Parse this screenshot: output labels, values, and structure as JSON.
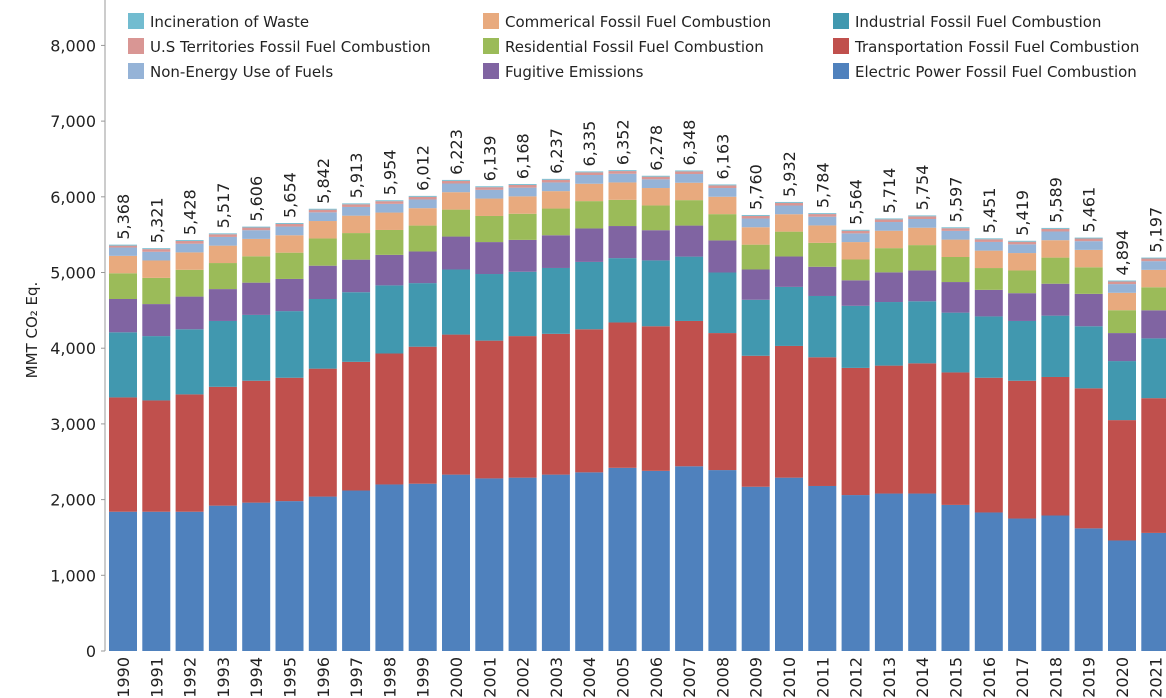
{
  "chart_data": {
    "type": "stacked-bar",
    "y_label": "MMT CO₂ Eq.",
    "categories": [
      "1990",
      "1991",
      "1992",
      "1993",
      "1994",
      "1995",
      "1996",
      "1997",
      "1998",
      "1999",
      "2000",
      "2001",
      "2002",
      "2003",
      "2004",
      "2005",
      "2006",
      "2007",
      "2008",
      "2009",
      "2010",
      "2011",
      "2012",
      "2013",
      "2014",
      "2015",
      "2016",
      "2017",
      "2018",
      "2019",
      "2020",
      "2021"
    ],
    "ylim": [
      0,
      8600
    ],
    "yticks": [
      0,
      {
        "value": 1000,
        "label": "1,000"
      },
      {
        "value": 2000,
        "label": "2,000"
      },
      {
        "value": 3000,
        "label": "3,000"
      },
      {
        "value": 4000,
        "label": "4,000"
      },
      {
        "value": 5000,
        "label": "5,000"
      },
      {
        "value": 6000,
        "label": "6,000"
      },
      {
        "value": 7000,
        "label": "7,000"
      },
      {
        "value": 8000,
        "label": "8,000"
      }
    ],
    "series": [
      {
        "name": "Electric Power Fossil Fuel Combustion",
        "color": "#4f81bd",
        "values": [
          1840,
          1840,
          1840,
          1920,
          1960,
          1980,
          2040,
          2120,
          2200,
          2210,
          2330,
          2280,
          2290,
          2330,
          2360,
          2420,
          2380,
          2440,
          2390,
          2170,
          2290,
          2180,
          2060,
          2080,
          2080,
          1930,
          1830,
          1750,
          1790,
          1620,
          1460,
          1560
        ]
      },
      {
        "name": "Transportation Fossil Fuel Combustion",
        "color": "#c0504d",
        "values": [
          1510,
          1470,
          1550,
          1570,
          1610,
          1630,
          1690,
          1700,
          1730,
          1810,
          1850,
          1820,
          1870,
          1860,
          1890,
          1920,
          1910,
          1920,
          1810,
          1730,
          1740,
          1700,
          1680,
          1690,
          1720,
          1750,
          1780,
          1820,
          1830,
          1850,
          1590,
          1780
        ]
      },
      {
        "name": "Industrial Fossil Fuel Combustion",
        "color": "#4198af",
        "values": [
          860,
          850,
          860,
          870,
          870,
          880,
          920,
          920,
          900,
          840,
          860,
          880,
          850,
          870,
          890,
          850,
          870,
          850,
          800,
          740,
          780,
          810,
          820,
          840,
          820,
          790,
          810,
          790,
          810,
          820,
          780,
          790
        ]
      },
      {
        "name": "Fugitive Emissions",
        "color": "#8064a2",
        "values": [
          440,
          423,
          432,
          421,
          426,
          425,
          440,
          430,
          403,
          418,
          435,
          422,
          421,
          432,
          442,
          424,
          399,
          410,
          424,
          400,
          402,
          386,
          337,
          392,
          408,
          404,
          351,
          367,
          422,
          428,
          370,
          371
        ]
      },
      {
        "name": "Residential Fossil Fuel Combustion",
        "color": "#9bbb59",
        "values": [
          340,
          346,
          354,
          344,
          348,
          347,
          360,
          351,
          329,
          342,
          356,
          345,
          345,
          353,
          361,
          346,
          327,
          336,
          347,
          328,
          328,
          316,
          275,
          320,
          334,
          331,
          288,
          300,
          345,
          351,
          302,
          304
        ]
      },
      {
        "name": "Commerical Fossil Fuel Combustion",
        "color": "#e8aa7e",
        "values": [
          230,
          230,
          230,
          230,
          230,
          230,
          230,
          230,
          230,
          230,
          230,
          230,
          230,
          230,
          230,
          230,
          230,
          230,
          230,
          230,
          230,
          230,
          230,
          230,
          230,
          230,
          230,
          230,
          230,
          230,
          230,
          230
        ]
      },
      {
        "name": "Non-Energy Use of Fuels",
        "color": "#95b3d7",
        "values": [
          110,
          115,
          115,
          115,
          115,
          115,
          115,
          115,
          115,
          115,
          115,
          115,
          115,
          115,
          115,
          115,
          115,
          115,
          115,
          115,
          115,
          115,
          115,
          115,
          115,
          115,
          115,
          115,
          115,
          115,
          115,
          115
        ]
      },
      {
        "name": "U.S Territories Fossil Fuel Combustion",
        "color": "#d99694",
        "values": [
          25,
          35,
          35,
          35,
          35,
          35,
          35,
          35,
          35,
          35,
          35,
          35,
          35,
          35,
          35,
          35,
          35,
          35,
          35,
          35,
          35,
          35,
          35,
          35,
          35,
          35,
          35,
          35,
          35,
          35,
          35,
          35
        ]
      },
      {
        "name": "Incineration of Waste",
        "color": "#72bcd0",
        "values": [
          13,
          12,
          12,
          12,
          12,
          12,
          12,
          12,
          12,
          12,
          12,
          12,
          12,
          12,
          12,
          12,
          12,
          12,
          12,
          12,
          12,
          12,
          12,
          12,
          12,
          12,
          12,
          12,
          12,
          12,
          12,
          12
        ]
      }
    ],
    "totals": [
      5368,
      5321,
      5428,
      5517,
      5606,
      5654,
      5842,
      5913,
      5954,
      6012,
      6223,
      6139,
      6168,
      6237,
      6335,
      6352,
      6278,
      6348,
      6163,
      5760,
      5932,
      5784,
      5564,
      5714,
      5754,
      5597,
      5451,
      5419,
      5589,
      5461,
      4894,
      5197
    ],
    "total_labels": [
      "5,368",
      "5,321",
      "5,428",
      "5,517",
      "5,606",
      "5,654",
      "5,842",
      "5,913",
      "5,954",
      "6,012",
      "6,223",
      "6,139",
      "6,168",
      "6,237",
      "6,335",
      "6,352",
      "6,278",
      "6,348",
      "6,163",
      "5,760",
      "5,932",
      "5,784",
      "5,564",
      "5,714",
      "5,754",
      "5,597",
      "5,451",
      "5,419",
      "5,589",
      "5,461",
      "4,894",
      "5,197"
    ]
  }
}
